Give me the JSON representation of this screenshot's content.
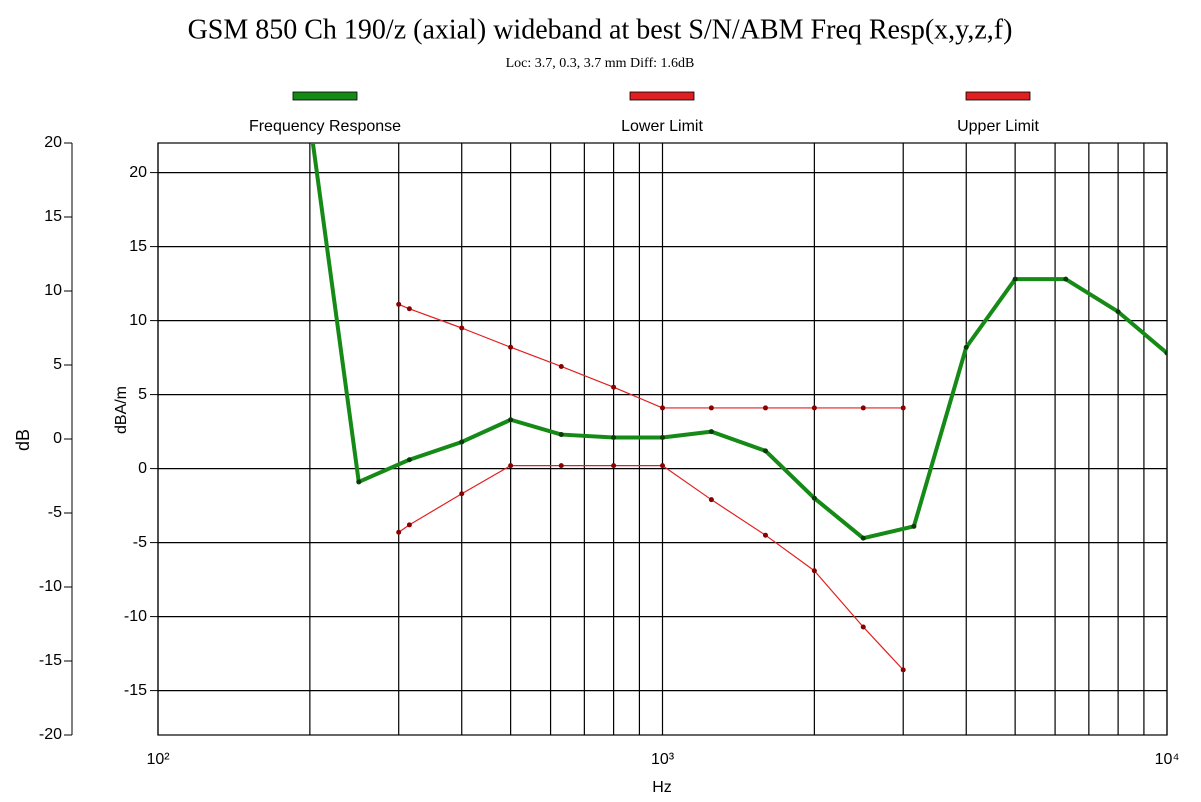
{
  "chart_data": {
    "type": "line",
    "title": "GSM 850 Ch 190/z (axial) wideband at best S/N/ABM Freq Resp(x,y,z,f)",
    "subtitle": "Loc: 3.7, 0.3, 3.7 mm Diff: 1.6dB",
    "xlabel": "Hz",
    "ylabel": "dBA/m",
    "y2label": "dB",
    "xscale": "log",
    "xlim": [
      100,
      10000
    ],
    "xticks": [
      {
        "value": 100,
        "label": "10²"
      },
      {
        "value": 1000,
        "label": "10³"
      },
      {
        "value": 10000,
        "label": "10⁴"
      }
    ],
    "xminor": [
      200,
      300,
      400,
      500,
      600,
      700,
      800,
      900,
      2000,
      3000,
      4000,
      5000,
      6000,
      7000,
      8000,
      9000
    ],
    "ylim": [
      -18,
      22
    ],
    "yticks": [
      20,
      15,
      10,
      5,
      0,
      -5,
      -10,
      -15
    ],
    "y2lim": [
      -20,
      20
    ],
    "y2ticks": [
      20,
      15,
      10,
      5,
      0,
      -5,
      -10,
      -15,
      -20
    ],
    "grid": true,
    "legend": "top",
    "series": [
      {
        "name": "Frequency Response",
        "color": "#168a16",
        "width": 4,
        "x": [
          200,
          250,
          315,
          400,
          500,
          630,
          800,
          1000,
          1250,
          1600,
          2000,
          2500,
          3150,
          4000,
          5000,
          6300,
          8000,
          10000
        ],
        "values": [
          23.5,
          -0.9,
          0.6,
          1.8,
          3.3,
          2.3,
          2.1,
          2.1,
          2.5,
          1.2,
          -2.0,
          -4.7,
          -3.9,
          8.2,
          12.8,
          12.8,
          10.6,
          7.8
        ]
      },
      {
        "name": "Lower Limit",
        "color": "#e02020",
        "width": 1.2,
        "x": [
          300,
          315,
          400,
          500,
          630,
          800,
          1000,
          1250,
          1600,
          2000,
          2500,
          3000
        ],
        "values": [
          -4.3,
          -3.8,
          -1.7,
          0.2,
          0.2,
          0.2,
          0.2,
          -2.1,
          -4.5,
          -6.9,
          -10.7,
          -13.6
        ]
      },
      {
        "name": "Upper Limit",
        "color": "#e02020",
        "width": 1.2,
        "x": [
          300,
          315,
          400,
          500,
          630,
          800,
          1000,
          1250,
          1600,
          2000,
          2500,
          3000
        ],
        "values": [
          11.1,
          10.8,
          9.5,
          8.2,
          6.9,
          5.5,
          4.1,
          4.1,
          4.1,
          4.1,
          4.1,
          4.1
        ]
      }
    ]
  }
}
